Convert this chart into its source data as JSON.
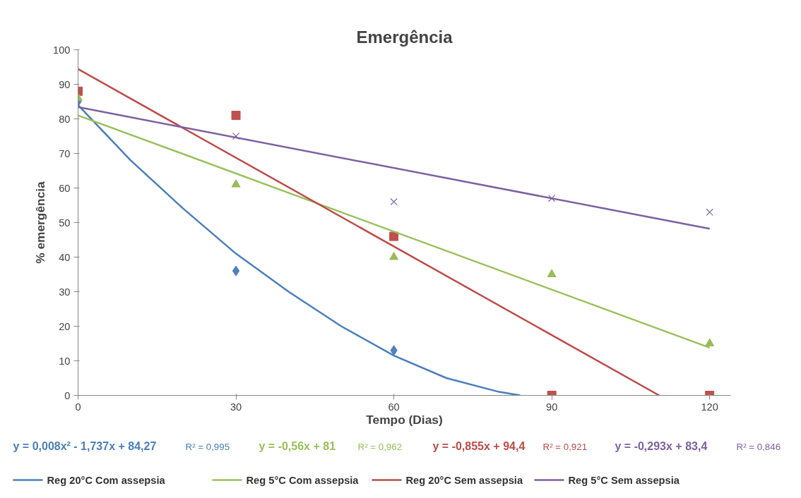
{
  "chart_data": {
    "type": "scatter",
    "title": "Emergência",
    "xlabel": "Tempo (Dias)",
    "ylabel": "% emergência",
    "xlim": [
      0,
      124
    ],
    "xticks": [
      0,
      30,
      60,
      90,
      120
    ],
    "ylim": [
      0,
      100
    ],
    "yticks": [
      0,
      10,
      20,
      30,
      40,
      50,
      60,
      70,
      80,
      90,
      100
    ],
    "x": [
      0,
      30,
      60,
      90,
      120
    ],
    "series": [
      {
        "color": "#4f81bd",
        "marker": "diamond",
        "values": [
          85,
          36,
          13,
          null,
          null
        ]
      },
      {
        "color": "#c0504d",
        "marker": "square",
        "values": [
          88,
          81,
          46,
          0,
          0
        ]
      },
      {
        "color": "#9bbb59",
        "marker": "triangle",
        "values": [
          86,
          61,
          40,
          35,
          15
        ]
      },
      {
        "color": "#8064a2",
        "marker": "cross",
        "values": [
          null,
          75,
          56,
          57,
          53
        ]
      },
      {
        "type": "line",
        "name": "Reg 20°C Com assepsia",
        "color": "#4a7ebb",
        "x": [
          0,
          10,
          20,
          30,
          40,
          50,
          60,
          70,
          80,
          84
        ],
        "values": [
          84,
          68,
          54,
          41,
          30,
          20,
          11.5,
          5,
          1,
          0
        ]
      },
      {
        "type": "line",
        "name": "Reg 5°C Com assepsia",
        "color": "#98c05a",
        "x": [
          0,
          120
        ],
        "values": [
          81,
          13.8
        ]
      },
      {
        "type": "line",
        "name": "Reg 20°C Sem assepsia",
        "color": "#be4b48",
        "x": [
          0,
          110.4
        ],
        "values": [
          94.4,
          0
        ]
      },
      {
        "type": "line",
        "name": "Reg 5°C Sem assepsia",
        "color": "#7d60a0",
        "x": [
          0,
          120
        ],
        "values": [
          83.4,
          48.2
        ]
      }
    ],
    "annotations": [
      "y = 0,008x² - 1,737x + 84,27",
      "R² = 0,995",
      "y = -0,56x + 81",
      "R² = 0,962",
      "y = -0,855x + 94,4",
      "R² = 0,921",
      "y = -0,293x + 83,4",
      "R² = 0,846"
    ],
    "legend": "bottom",
    "grid": false
  }
}
